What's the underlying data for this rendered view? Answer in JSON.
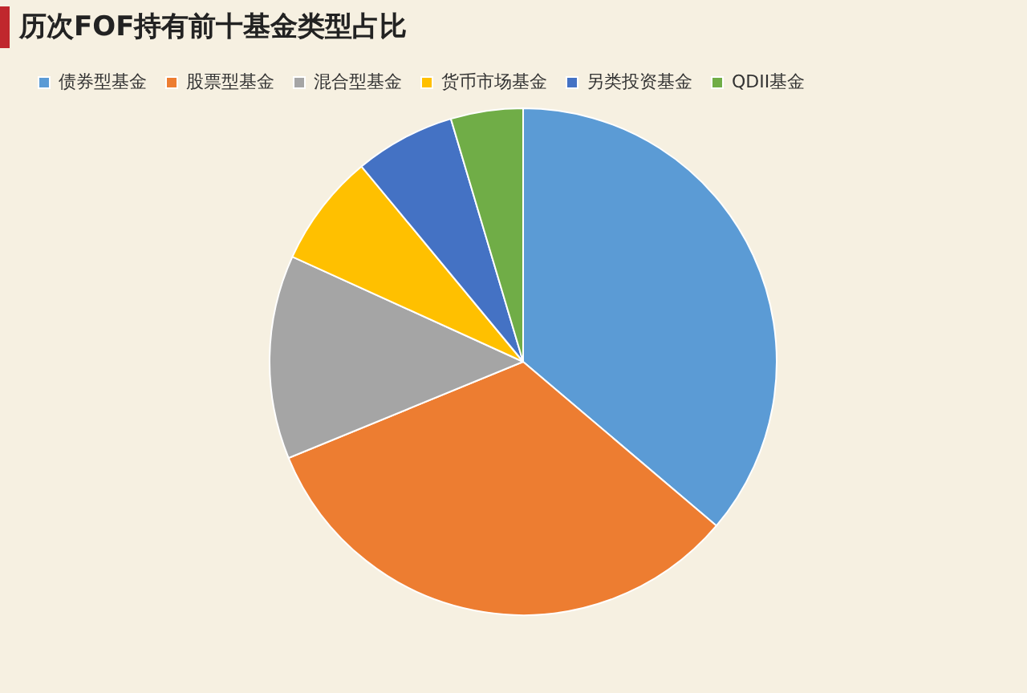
{
  "chart_data": {
    "type": "pie",
    "title": "历次FOF持有前十基金类型占比",
    "categories": [
      "债券型基金",
      "股票型基金",
      "混合型基金",
      "货币市场基金",
      "另类投资基金",
      "QDII基金"
    ],
    "values": [
      36.2,
      32.6,
      13.0,
      7.2,
      6.4,
      4.6
    ],
    "colors": [
      "#5b9bd5",
      "#ed7d31",
      "#a5a5a5",
      "#ffc000",
      "#4472c4",
      "#70ad47"
    ],
    "legend": "top left"
  }
}
